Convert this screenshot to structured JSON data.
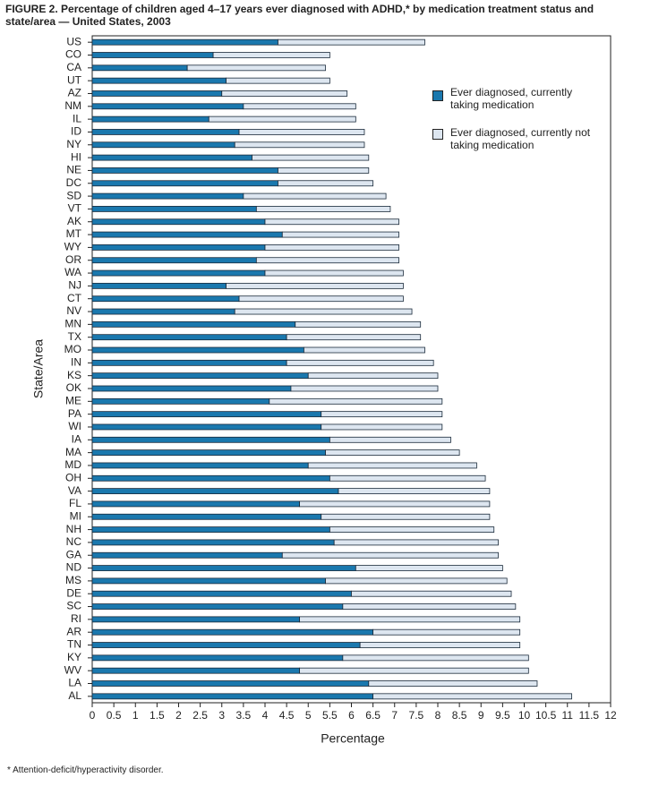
{
  "chart_data": {
    "type": "stacked-barh",
    "title": "FIGURE 2. Percentage of children aged 4–17 years ever diagnosed with ADHD,* by medication treatment status and state/area — United States, 2003",
    "xlabel": "Percentage",
    "ylabel": "State/Area",
    "footnote": "* Attention-deficit/hyperactivity disorder.",
    "categories": [
      "US",
      "CO",
      "CA",
      "UT",
      "AZ",
      "NM",
      "IL",
      "ID",
      "NY",
      "HI",
      "NE",
      "DC",
      "SD",
      "VT",
      "AK",
      "MT",
      "WY",
      "OR",
      "WA",
      "NJ",
      "CT",
      "NV",
      "MN",
      "TX",
      "MO",
      "IN",
      "KS",
      "OK",
      "ME",
      "PA",
      "WI",
      "IA",
      "MA",
      "MD",
      "OH",
      "VA",
      "FL",
      "MI",
      "NH",
      "NC",
      "GA",
      "ND",
      "MS",
      "DE",
      "SC",
      "RI",
      "AR",
      "TN",
      "KY",
      "WV",
      "LA",
      "AL"
    ],
    "series": [
      {
        "name": "Ever diagnosed, currently taking medication",
        "color": "#1a78ae",
        "values": [
          4.3,
          2.8,
          2.2,
          3.1,
          3.0,
          3.5,
          2.7,
          3.4,
          3.3,
          3.7,
          4.3,
          4.3,
          3.5,
          3.8,
          4.0,
          4.4,
          4.0,
          3.8,
          4.0,
          3.1,
          3.4,
          3.3,
          4.7,
          4.5,
          4.9,
          4.5,
          5.0,
          4.6,
          4.1,
          5.3,
          5.3,
          5.5,
          5.4,
          5.0,
          5.5,
          5.7,
          4.8,
          5.3,
          5.5,
          5.6,
          4.4,
          6.1,
          5.4,
          6.0,
          5.8,
          4.8,
          6.5,
          6.2,
          5.8,
          4.8,
          6.4,
          6.5
        ]
      },
      {
        "name": "Ever diagnosed, currently not taking medication",
        "color": "#dde6f0",
        "values": [
          3.4,
          2.7,
          3.2,
          2.4,
          2.9,
          2.6,
          3.4,
          2.9,
          3.0,
          2.7,
          2.1,
          2.2,
          3.3,
          3.1,
          3.1,
          2.7,
          3.1,
          3.3,
          3.2,
          4.1,
          3.8,
          4.1,
          2.9,
          3.1,
          2.8,
          3.4,
          3.0,
          3.4,
          4.0,
          2.8,
          2.8,
          2.8,
          3.1,
          3.9,
          3.6,
          3.5,
          4.4,
          3.9,
          3.8,
          3.8,
          5.0,
          3.4,
          4.2,
          3.7,
          4.0,
          5.1,
          3.4,
          3.7,
          4.3,
          5.3,
          3.9,
          4.6
        ]
      }
    ],
    "xlim": [
      0,
      12
    ],
    "xticks": [
      0,
      0.5,
      1,
      1.5,
      2,
      2.5,
      3,
      3.5,
      4,
      4.5,
      5,
      5.5,
      6,
      6.5,
      7,
      7.5,
      8,
      8.5,
      9,
      9.5,
      10,
      10.5,
      11,
      11.5,
      12
    ]
  }
}
